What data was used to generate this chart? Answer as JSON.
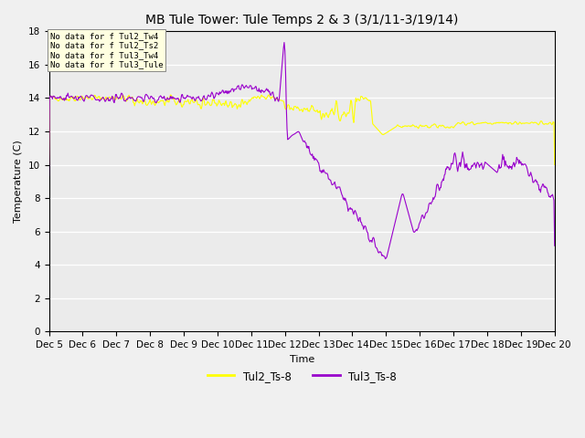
{
  "title": "MB Tule Tower: Tule Temps 2 & 3 (3/1/11-3/19/14)",
  "xlabel": "Time",
  "ylabel": "Temperature (C)",
  "ylim": [
    0,
    18
  ],
  "xlim": [
    0,
    360
  ],
  "fig_bg": "#f0f0f0",
  "plot_bg": "#ebebeb",
  "tul2_color": "#ffff00",
  "tul3_color": "#9900cc",
  "legend_labels": [
    "Tul2_Ts-8",
    "Tul3_Ts-8"
  ],
  "no_data_labels": [
    "No data for f Tul2_Tw4",
    "No data for f Tul2_Ts2",
    "No data for f Tul3_Tw4",
    "No data for f Tul3_Tule"
  ],
  "xtick_labels": [
    "Dec 5",
    "Dec 6",
    "Dec 7",
    "Dec 8",
    "Dec 9",
    "Dec 10",
    "Dec 11",
    "Dec 12",
    "Dec 13",
    "Dec 14",
    "Dec 15",
    "Dec 16",
    "Dec 17",
    "Dec 18",
    "Dec 19",
    "Dec 20"
  ],
  "xtick_positions": [
    0,
    24,
    48,
    72,
    96,
    120,
    144,
    168,
    192,
    216,
    240,
    264,
    288,
    312,
    336,
    360
  ]
}
